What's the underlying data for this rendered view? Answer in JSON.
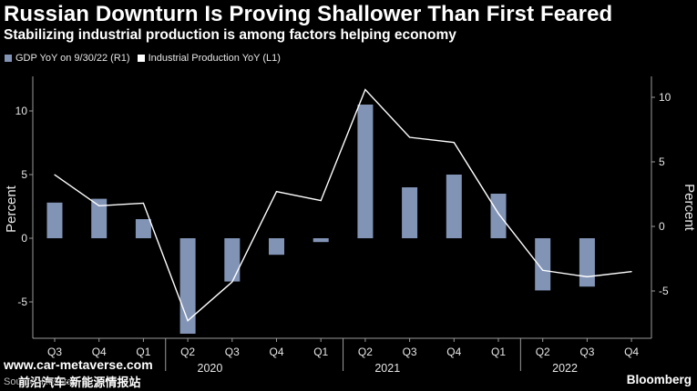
{
  "header": {
    "title": "Russian Downturn Is Proving Shallower Than First Feared",
    "subtitle": "Stabilizing industrial production is among factors helping economy"
  },
  "footer": {
    "source": "Source: Rosstat",
    "brand": "Bloomberg",
    "watermark_url": "www.car-metaverse.com",
    "watermark_cn": "前沿汽车·新能源情报站"
  },
  "colors": {
    "bar": "#8294b6",
    "line": "#ffffff",
    "background": "#000000",
    "gridline": "#444444"
  },
  "chart_data": {
    "type": "bar",
    "categories": [
      "Q3",
      "Q4",
      "Q1",
      "Q2",
      "Q3",
      "Q4",
      "Q1",
      "Q2",
      "Q3",
      "Q4",
      "Q1",
      "Q2",
      "Q3",
      "Q4"
    ],
    "year_labels": [
      {
        "label": "2020",
        "index": 3.5
      },
      {
        "label": "2021",
        "index": 7.5
      },
      {
        "label": "2022",
        "index": 11.5
      }
    ],
    "series": [
      {
        "name": "GDP YoY on 9/30/22 (R1)",
        "type": "bar",
        "axis": "left",
        "values": [
          2.8,
          3.1,
          1.5,
          -7.5,
          -3.4,
          -1.3,
          -0.3,
          10.5,
          4.0,
          5.0,
          3.5,
          -4.1,
          -3.8,
          null
        ]
      },
      {
        "name": "Industrial Production YoY (L1)",
        "type": "line",
        "axis": "right",
        "values": [
          4.0,
          1.6,
          1.8,
          -7.3,
          -4.3,
          2.7,
          2.0,
          10.6,
          6.9,
          6.5,
          1.0,
          -3.4,
          -3.9,
          -3.5
        ]
      }
    ],
    "left_axis": {
      "label": "Percent",
      "ticks": [
        -5,
        0,
        5,
        10
      ],
      "range": [
        -8,
        13
      ]
    },
    "right_axis": {
      "label": "Percent",
      "ticks": [
        -5,
        0,
        5,
        10
      ],
      "range": [
        -7.5,
        11.7
      ]
    },
    "grid": false,
    "legend": "top-left"
  }
}
